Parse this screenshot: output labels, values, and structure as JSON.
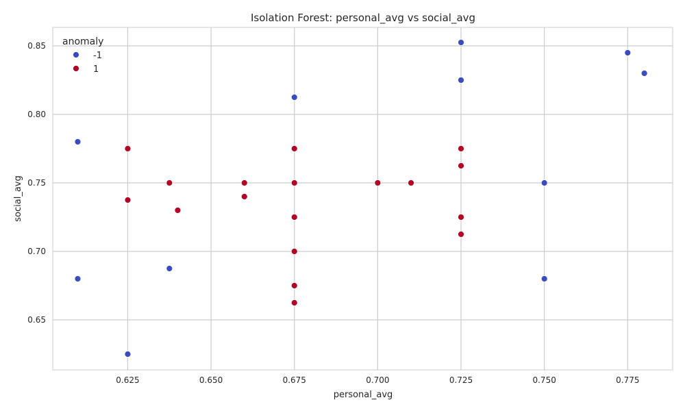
{
  "chart_data": {
    "type": "scatter",
    "title": "Isolation Forest: personal_avg vs social_avg",
    "xlabel": "personal_avg",
    "ylabel": "social_avg",
    "xlim": [
      0.6025,
      0.7885
    ],
    "ylim": [
      0.6135,
      0.8635
    ],
    "xticks": [
      {
        "value": 0.625,
        "label": "0.625"
      },
      {
        "value": 0.65,
        "label": "0.650"
      },
      {
        "value": 0.675,
        "label": "0.675"
      },
      {
        "value": 0.7,
        "label": "0.700"
      },
      {
        "value": 0.725,
        "label": "0.725"
      },
      {
        "value": 0.75,
        "label": "0.750"
      },
      {
        "value": 0.775,
        "label": "0.775"
      }
    ],
    "yticks": [
      {
        "value": 0.65,
        "label": "0.65"
      },
      {
        "value": 0.7,
        "label": "0.70"
      },
      {
        "value": 0.75,
        "label": "0.75"
      },
      {
        "value": 0.8,
        "label": "0.80"
      },
      {
        "value": 0.85,
        "label": "0.85"
      }
    ],
    "grid": true,
    "legend": {
      "title": "anomaly",
      "position": "top-left",
      "entries": [
        {
          "label": "-1",
          "color": "#3b4cc0"
        },
        {
          "label": "1",
          "color": "#b40426"
        }
      ]
    },
    "series": [
      {
        "name": "-1",
        "color": "#3b4cc0",
        "points": [
          {
            "x": 0.61,
            "y": 0.78
          },
          {
            "x": 0.61,
            "y": 0.68
          },
          {
            "x": 0.625,
            "y": 0.625
          },
          {
            "x": 0.6375,
            "y": 0.6875
          },
          {
            "x": 0.675,
            "y": 0.8125
          },
          {
            "x": 0.725,
            "y": 0.8525
          },
          {
            "x": 0.725,
            "y": 0.825
          },
          {
            "x": 0.75,
            "y": 0.75
          },
          {
            "x": 0.75,
            "y": 0.68
          },
          {
            "x": 0.775,
            "y": 0.845
          },
          {
            "x": 0.78,
            "y": 0.83
          }
        ]
      },
      {
        "name": "1",
        "color": "#b40426",
        "points": [
          {
            "x": 0.625,
            "y": 0.775
          },
          {
            "x": 0.625,
            "y": 0.7375
          },
          {
            "x": 0.6375,
            "y": 0.75
          },
          {
            "x": 0.64,
            "y": 0.73
          },
          {
            "x": 0.66,
            "y": 0.75
          },
          {
            "x": 0.66,
            "y": 0.74
          },
          {
            "x": 0.675,
            "y": 0.775
          },
          {
            "x": 0.675,
            "y": 0.75
          },
          {
            "x": 0.675,
            "y": 0.725
          },
          {
            "x": 0.675,
            "y": 0.7
          },
          {
            "x": 0.675,
            "y": 0.675
          },
          {
            "x": 0.675,
            "y": 0.6625
          },
          {
            "x": 0.7,
            "y": 0.75
          },
          {
            "x": 0.71,
            "y": 0.75
          },
          {
            "x": 0.725,
            "y": 0.775
          },
          {
            "x": 0.725,
            "y": 0.7625
          },
          {
            "x": 0.725,
            "y": 0.725
          },
          {
            "x": 0.725,
            "y": 0.7125
          }
        ]
      }
    ]
  }
}
